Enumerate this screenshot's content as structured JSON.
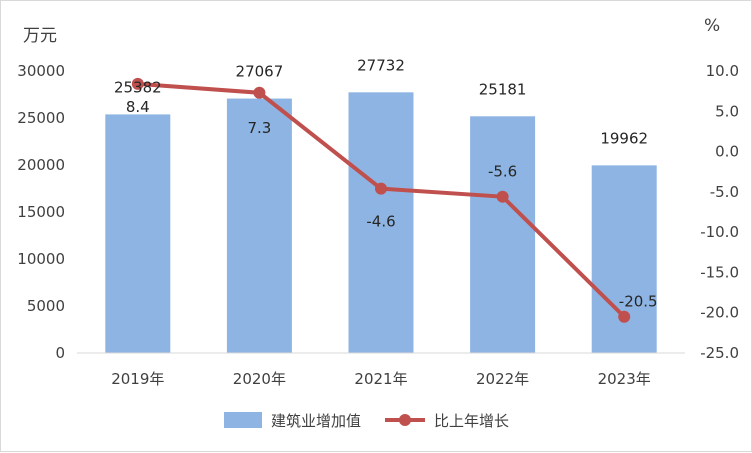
{
  "chart_data": {
    "type": "bar+line",
    "categories": [
      "2019年",
      "2020年",
      "2021年",
      "2022年",
      "2023年"
    ],
    "series": [
      {
        "name": "建筑业增加值",
        "type": "bar",
        "axis": "left",
        "color": "#8eb4e3",
        "values": [
          25382,
          27067,
          27732,
          25181,
          19962
        ],
        "labels": [
          "25382",
          "27067",
          "27732",
          "25181",
          "19962"
        ]
      },
      {
        "name": "比上年增长",
        "type": "line",
        "axis": "right",
        "color": "#c0504d",
        "values": [
          8.4,
          7.3,
          -4.6,
          -5.6,
          -20.5
        ],
        "labels": [
          "8.4",
          "7.3",
          "-4.6",
          "-5.6",
          "-20.5"
        ]
      }
    ],
    "y_left": {
      "unit": "万元",
      "ylim": [
        0,
        30000
      ],
      "ticks": [
        "0",
        "5000",
        "10000",
        "15000",
        "20000",
        "25000",
        "30000"
      ]
    },
    "y_right": {
      "unit": "%",
      "ylim": [
        -25,
        10
      ],
      "ticks": [
        "-25.0",
        "-20.0",
        "-15.0",
        "-10.0",
        "-5.0",
        "0.0",
        "5.0",
        "10.0"
      ]
    },
    "grid": false,
    "legend_position": "bottom"
  }
}
